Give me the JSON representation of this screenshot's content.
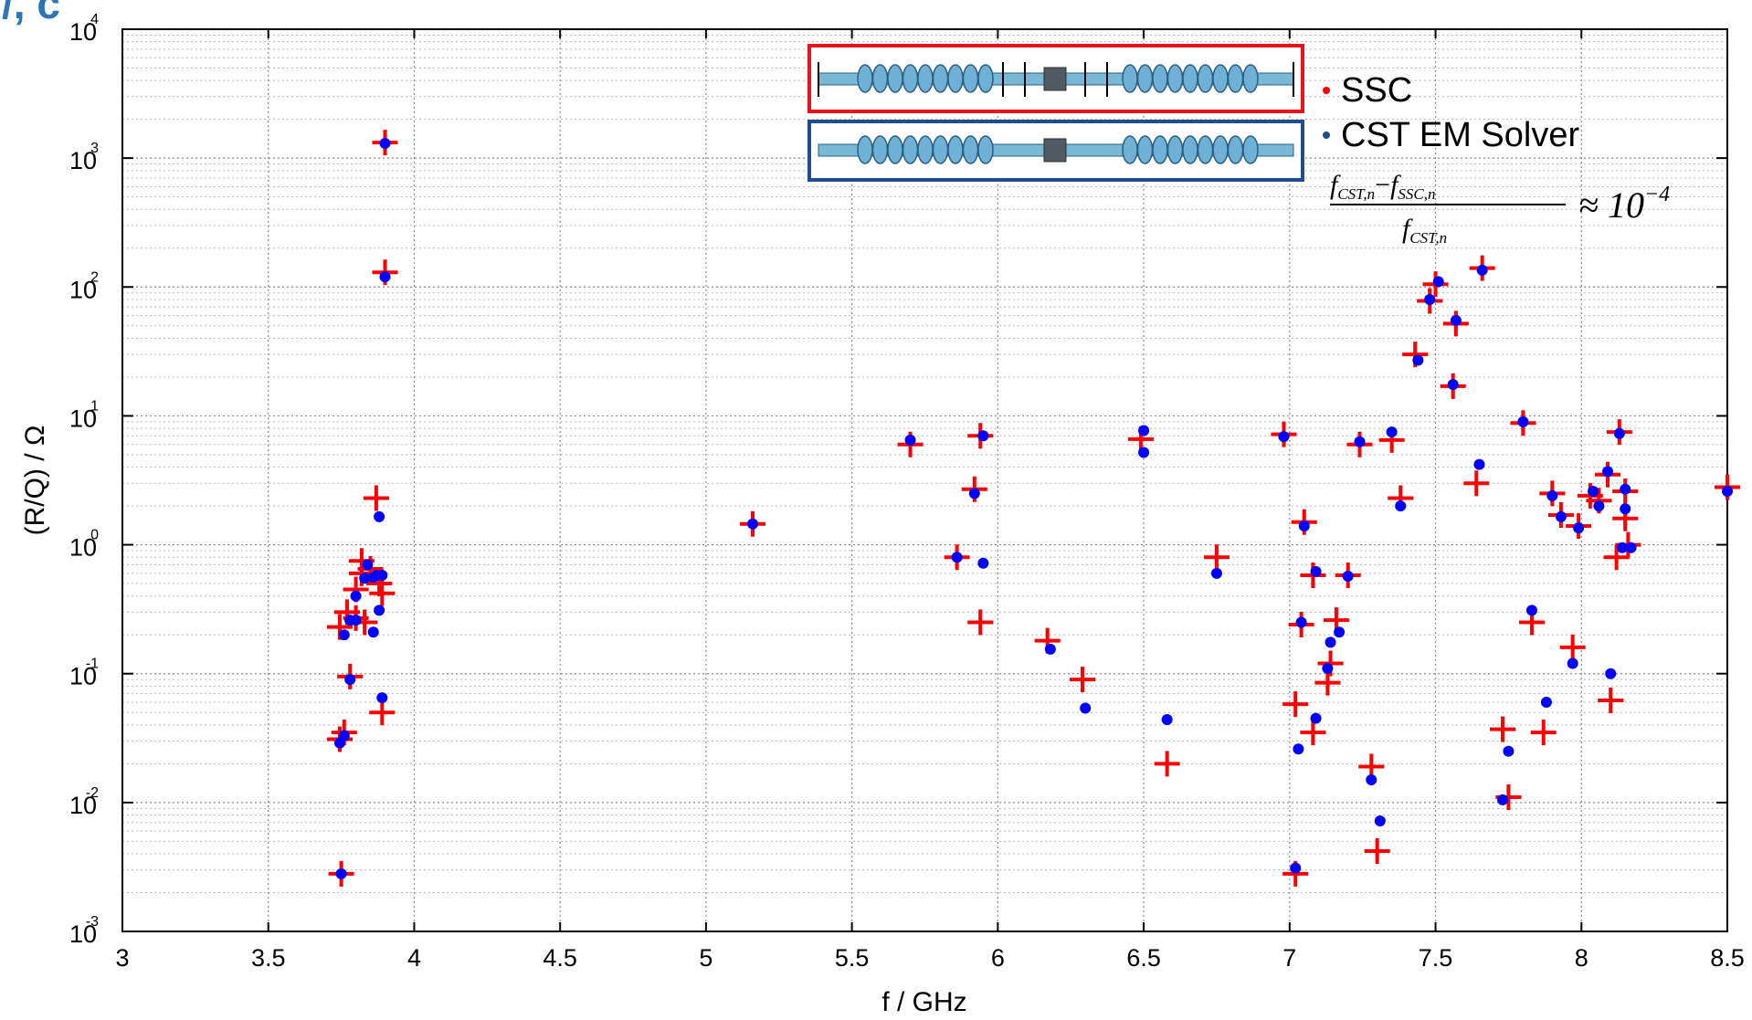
{
  "corner_label": "/, c",
  "chart_data": {
    "type": "scatter",
    "title": "",
    "xlabel": "f / GHz",
    "ylabel": "(R/Q) / Ω",
    "xlim": [
      3,
      8.5
    ],
    "ylim": [
      0.001,
      10000
    ],
    "yscale": "log",
    "grid": true,
    "legend_position": "top-right",
    "x_ticks": [
      "3",
      "3.5",
      "4",
      "4.5",
      "5",
      "5.5",
      "6",
      "6.5",
      "7",
      "7.5",
      "8",
      "8.5"
    ],
    "y_ticks": [
      {
        "base": "10",
        "exp": "-3"
      },
      {
        "base": "10",
        "exp": "-2"
      },
      {
        "base": "10",
        "exp": "-1"
      },
      {
        "base": "10",
        "exp": "0"
      },
      {
        "base": "10",
        "exp": "1"
      },
      {
        "base": "10",
        "exp": "2"
      },
      {
        "base": "10",
        "exp": "3"
      },
      {
        "base": "10",
        "exp": "4"
      }
    ],
    "colors": {
      "ssc": "#ff0000",
      "cst": "#0000ff",
      "ssc_box": "#e8141b",
      "cst_box": "#1f4e8c"
    },
    "legend": {
      "ssc_label": "SSC",
      "cst_label": "CST EM Solver",
      "formula_num_a": "f",
      "formula_num_a_sub": "CST,n",
      "formula_num_op": "−",
      "formula_num_b": "f",
      "formula_num_b_sub": "SSC,n",
      "formula_den": "f",
      "formula_den_sub": "CST,n",
      "formula_rhs": "≈ 10",
      "formula_rhs_exp": "−4"
    },
    "series": [
      {
        "name": "SSC",
        "marker": "plus",
        "points": [
          [
            3.75,
            0.0028
          ],
          [
            3.745,
            0.031
          ],
          [
            3.76,
            0.035
          ],
          [
            3.78,
            0.095
          ],
          [
            3.745,
            0.23
          ],
          [
            3.77,
            0.3
          ],
          [
            3.8,
            0.27
          ],
          [
            3.83,
            0.25
          ],
          [
            3.8,
            0.45
          ],
          [
            3.82,
            0.6
          ],
          [
            3.82,
            0.75
          ],
          [
            3.85,
            0.65
          ],
          [
            3.88,
            0.5
          ],
          [
            3.89,
            0.42
          ],
          [
            3.89,
            0.05
          ],
          [
            3.87,
            2.3
          ],
          [
            3.9,
            1320
          ],
          [
            3.9,
            130
          ],
          [
            5.16,
            1.45
          ],
          [
            5.7,
            6.0
          ],
          [
            5.86,
            0.8
          ],
          [
            5.92,
            2.7
          ],
          [
            5.94,
            7.0
          ],
          [
            5.94,
            0.25
          ],
          [
            6.17,
            0.18
          ],
          [
            6.29,
            0.09
          ],
          [
            6.49,
            6.6
          ],
          [
            6.58,
            0.02
          ],
          [
            6.75,
            0.8
          ],
          [
            6.98,
            7.2
          ],
          [
            7.02,
            0.0028
          ],
          [
            7.02,
            0.058
          ],
          [
            7.04,
            0.24
          ],
          [
            7.05,
            1.5
          ],
          [
            7.08,
            0.58
          ],
          [
            7.08,
            0.035
          ],
          [
            7.13,
            0.085
          ],
          [
            7.14,
            0.12
          ],
          [
            7.16,
            0.26
          ],
          [
            7.2,
            0.58
          ],
          [
            7.24,
            6.0
          ],
          [
            7.28,
            0.019
          ],
          [
            7.3,
            0.0042
          ],
          [
            7.35,
            6.5
          ],
          [
            7.38,
            2.3
          ],
          [
            7.43,
            30
          ],
          [
            7.48,
            78
          ],
          [
            7.5,
            105
          ],
          [
            7.56,
            17
          ],
          [
            7.57,
            52
          ],
          [
            7.64,
            3.0
          ],
          [
            7.66,
            140
          ],
          [
            7.73,
            0.037
          ],
          [
            7.75,
            0.011
          ],
          [
            7.8,
            8.8
          ],
          [
            7.83,
            0.25
          ],
          [
            7.87,
            0.035
          ],
          [
            7.9,
            2.5
          ],
          [
            7.93,
            1.7
          ],
          [
            7.97,
            0.16
          ],
          [
            7.99,
            1.4
          ],
          [
            8.03,
            2.4
          ],
          [
            8.06,
            2.2
          ],
          [
            8.09,
            3.5
          ],
          [
            8.1,
            0.062
          ],
          [
            8.12,
            0.8
          ],
          [
            8.13,
            7.5
          ],
          [
            8.15,
            2.6
          ],
          [
            8.15,
            1.6
          ],
          [
            8.16,
            1.0
          ],
          [
            8.5,
            2.8
          ]
        ]
      },
      {
        "name": "CST EM Solver",
        "marker": "dot",
        "points": [
          [
            3.75,
            0.0028
          ],
          [
            3.745,
            0.029
          ],
          [
            3.76,
            0.033
          ],
          [
            3.78,
            0.09
          ],
          [
            3.76,
            0.2
          ],
          [
            3.78,
            0.26
          ],
          [
            3.8,
            0.26
          ],
          [
            3.8,
            0.4
          ],
          [
            3.83,
            0.55
          ],
          [
            3.84,
            0.7
          ],
          [
            3.86,
            0.56
          ],
          [
            3.87,
            0.58
          ],
          [
            3.89,
            0.58
          ],
          [
            3.86,
            0.21
          ],
          [
            3.88,
            0.31
          ],
          [
            3.89,
            0.065
          ],
          [
            3.88,
            1.65
          ],
          [
            3.9,
            1300
          ],
          [
            3.9,
            120
          ],
          [
            5.16,
            1.45
          ],
          [
            5.7,
            6.5
          ],
          [
            5.86,
            0.8
          ],
          [
            5.92,
            2.5
          ],
          [
            5.95,
            7.0
          ],
          [
            5.95,
            0.72
          ],
          [
            6.18,
            0.155
          ],
          [
            6.3,
            0.054
          ],
          [
            6.5,
            7.7
          ],
          [
            6.5,
            5.2
          ],
          [
            6.58,
            0.044
          ],
          [
            6.75,
            0.6
          ],
          [
            6.98,
            6.9
          ],
          [
            7.02,
            0.0031
          ],
          [
            7.03,
            0.026
          ],
          [
            7.04,
            0.25
          ],
          [
            7.05,
            1.4
          ],
          [
            7.09,
            0.62
          ],
          [
            7.09,
            0.045
          ],
          [
            7.13,
            0.11
          ],
          [
            7.14,
            0.175
          ],
          [
            7.17,
            0.21
          ],
          [
            7.2,
            0.57
          ],
          [
            7.24,
            6.3
          ],
          [
            7.28,
            0.015
          ],
          [
            7.31,
            0.0072
          ],
          [
            7.35,
            7.5
          ],
          [
            7.38,
            2.0
          ],
          [
            7.44,
            27
          ],
          [
            7.48,
            80
          ],
          [
            7.51,
            110
          ],
          [
            7.56,
            17.5
          ],
          [
            7.57,
            55
          ],
          [
            7.65,
            4.2
          ],
          [
            7.66,
            135
          ],
          [
            7.73,
            0.0105
          ],
          [
            7.75,
            0.025
          ],
          [
            7.8,
            9.0
          ],
          [
            7.83,
            0.31
          ],
          [
            7.88,
            0.06
          ],
          [
            7.9,
            2.4
          ],
          [
            7.93,
            1.65
          ],
          [
            7.97,
            0.12
          ],
          [
            7.99,
            1.35
          ],
          [
            8.04,
            2.6
          ],
          [
            8.06,
            2.0
          ],
          [
            8.09,
            3.7
          ],
          [
            8.1,
            0.1
          ],
          [
            8.13,
            7.3
          ],
          [
            8.14,
            0.95
          ],
          [
            8.15,
            2.7
          ],
          [
            8.15,
            1.9
          ],
          [
            8.17,
            0.95
          ],
          [
            8.5,
            2.6
          ]
        ]
      }
    ]
  }
}
